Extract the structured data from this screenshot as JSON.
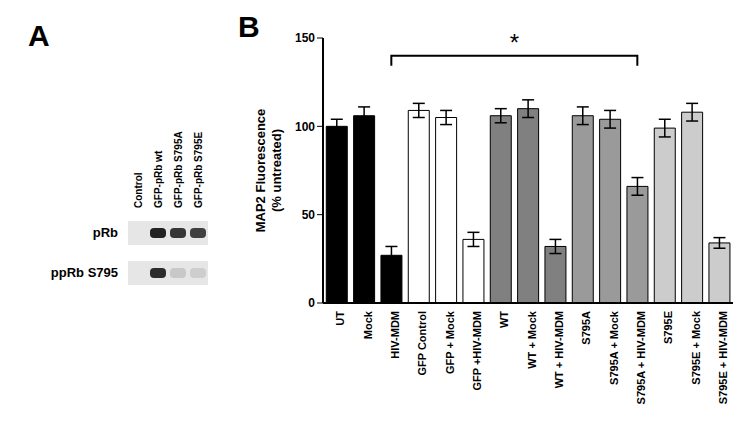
{
  "panel_a": {
    "label": "A",
    "lanes": [
      "Control",
      "GFP-pRb wt",
      "GFP-pRb S795A",
      "GFP-pRb S795E"
    ],
    "rows": [
      "pRb",
      "ppRb S795"
    ]
  },
  "chart_data": {
    "type": "bar",
    "title": "B",
    "y_label": "MAP2 Fluorescence\n(% untreated)",
    "categories": [
      "UT",
      "Mock",
      "HIV-MDM",
      "GFP Control",
      "GFP + Mock",
      "GFP +HIV-MDM",
      "WT",
      "WT + Mock",
      "WT + HIV-MDM",
      "S795A",
      "S795A + Mock",
      "S795A + HIV-MDM",
      "S795E",
      "S795E + Mock",
      "S795E + HIV-MDM"
    ],
    "values": [
      100,
      106,
      27,
      109,
      105,
      36,
      106,
      110,
      32,
      106,
      104,
      66,
      99,
      108,
      34
    ],
    "errors": [
      4,
      5,
      5,
      4,
      4,
      4,
      4,
      5,
      4,
      5,
      5,
      5,
      5,
      5,
      3
    ],
    "colors": [
      "#000000",
      "#000000",
      "#000000",
      "#ffffff",
      "#ffffff",
      "#ffffff",
      "#808080",
      "#808080",
      "#808080",
      "#9a9a9a",
      "#9a9a9a",
      "#9a9a9a",
      "#cccccc",
      "#cccccc",
      "#cccccc"
    ],
    "ylim": [
      0,
      150
    ],
    "yticks": [
      0,
      50,
      100,
      150
    ],
    "grid": false,
    "annotations": [
      {
        "text": "*",
        "from": "HIV-MDM",
        "to": "S795A + HIV-MDM",
        "y": 140
      }
    ]
  }
}
